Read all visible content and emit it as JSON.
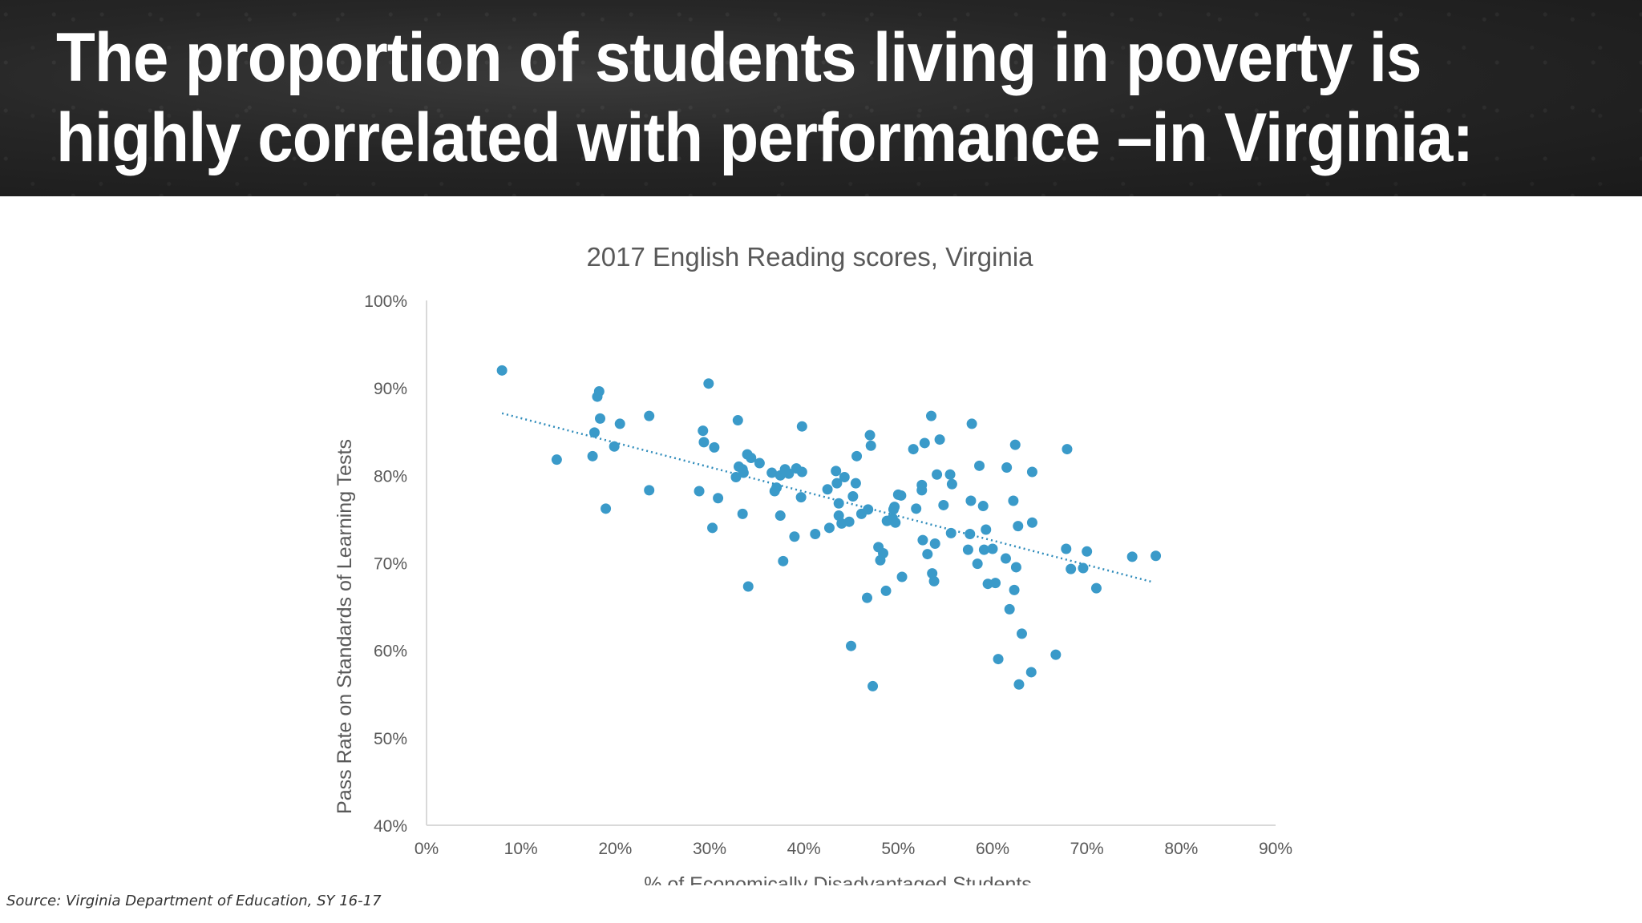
{
  "slide": {
    "title_line1": "The proportion of students living in poverty is",
    "title_line2": "highly correlated with performance –in Virginia:",
    "source": "Source: Virginia Department of Education, SY 16-17"
  },
  "colors": {
    "header_bg": "#262626",
    "title_text": "#ffffff",
    "point": "#3a9ac9",
    "trendline": "#2f8cbb",
    "axis_text": "#595959",
    "axis_line": "#d9d9d9"
  },
  "chart_data": {
    "type": "scatter",
    "title": "2017 English Reading scores, Virginia",
    "xlabel": "% of Economically Disadvantaged Students",
    "ylabel": "Pass Rate on Standards of Learning Tests",
    "xlim": [
      0,
      90
    ],
    "ylim": [
      40,
      100
    ],
    "x_ticks": [
      "0%",
      "10%",
      "20%",
      "30%",
      "40%",
      "50%",
      "60%",
      "70%",
      "80%",
      "90%"
    ],
    "y_ticks": [
      "40%",
      "50%",
      "60%",
      "70%",
      "80%",
      "90%",
      "100%"
    ],
    "grid": false,
    "legend": "none",
    "trendline": {
      "type": "linear",
      "style": "dotted",
      "x": [
        8,
        77
      ],
      "y": [
        87.1,
        67.8
      ]
    },
    "x": [
      8.0,
      13.8,
      17.6,
      17.8,
      18.1,
      18.3,
      18.4,
      19.0,
      19.9,
      20.5,
      23.6,
      23.6,
      28.9,
      29.3,
      29.4,
      29.9,
      30.3,
      30.5,
      30.9,
      32.8,
      33.0,
      33.1,
      33.5,
      33.5,
      33.6,
      34.0,
      34.1,
      34.4,
      35.3,
      36.6,
      36.9,
      37.1,
      37.5,
      37.5,
      37.8,
      38.0,
      38.4,
      39.0,
      39.2,
      39.7,
      39.8,
      39.8,
      41.2,
      42.5,
      42.7,
      43.4,
      43.5,
      43.7,
      43.7,
      44.0,
      44.3,
      44.8,
      45.0,
      45.2,
      45.5,
      45.6,
      46.1,
      46.7,
      46.8,
      47.0,
      47.1,
      47.3,
      47.9,
      48.1,
      48.4,
      48.7,
      48.8,
      49.3,
      49.4,
      49.5,
      49.6,
      49.7,
      50.0,
      50.3,
      50.4,
      51.6,
      51.9,
      52.5,
      52.5,
      52.6,
      52.8,
      53.1,
      53.5,
      53.6,
      53.8,
      53.9,
      54.1,
      54.4,
      54.8,
      55.5,
      55.6,
      55.7,
      57.4,
      57.6,
      57.7,
      57.8,
      58.4,
      58.6,
      59.0,
      59.1,
      59.3,
      59.5,
      60.0,
      60.3,
      60.6,
      61.4,
      61.5,
      61.8,
      62.2,
      62.3,
      62.4,
      62.5,
      62.7,
      62.8,
      63.1,
      64.1,
      64.2,
      64.2,
      66.7,
      67.8,
      67.9,
      68.3,
      69.6,
      70.0,
      71.0,
      74.8,
      77.3
    ],
    "y": [
      92.0,
      81.8,
      82.2,
      84.9,
      89.0,
      89.6,
      86.5,
      76.2,
      83.3,
      85.9,
      86.8,
      78.3,
      78.2,
      85.1,
      83.8,
      90.5,
      74.0,
      83.2,
      77.4,
      79.8,
      86.3,
      81.0,
      75.6,
      80.7,
      80.3,
      82.4,
      67.3,
      82.0,
      81.4,
      80.3,
      78.2,
      78.6,
      80.0,
      75.4,
      70.2,
      80.7,
      80.2,
      73.0,
      80.8,
      77.5,
      80.4,
      85.6,
      73.3,
      78.4,
      74.0,
      80.5,
      79.1,
      76.8,
      75.4,
      74.5,
      79.8,
      74.7,
      60.5,
      77.6,
      79.1,
      82.2,
      75.6,
      66.0,
      76.1,
      84.6,
      83.4,
      55.9,
      71.8,
      70.3,
      71.1,
      66.8,
      74.8,
      74.9,
      75.1,
      76.1,
      76.4,
      74.6,
      77.8,
      77.7,
      68.4,
      83.0,
      76.2,
      78.3,
      78.9,
      72.6,
      83.7,
      71.0,
      86.8,
      68.8,
      67.9,
      72.2,
      80.1,
      84.1,
      76.6,
      80.1,
      73.4,
      79.0,
      71.5,
      73.3,
      77.1,
      85.9,
      69.9,
      81.1,
      76.5,
      71.5,
      73.8,
      67.6,
      71.6,
      67.7,
      59.0,
      70.5,
      80.9,
      64.7,
      77.1,
      66.9,
      83.5,
      69.5,
      74.2,
      56.1,
      61.9,
      57.5,
      74.6,
      80.4,
      59.5,
      71.6,
      83.0,
      69.3,
      69.4,
      71.3,
      67.1,
      70.7,
      70.8
    ]
  }
}
